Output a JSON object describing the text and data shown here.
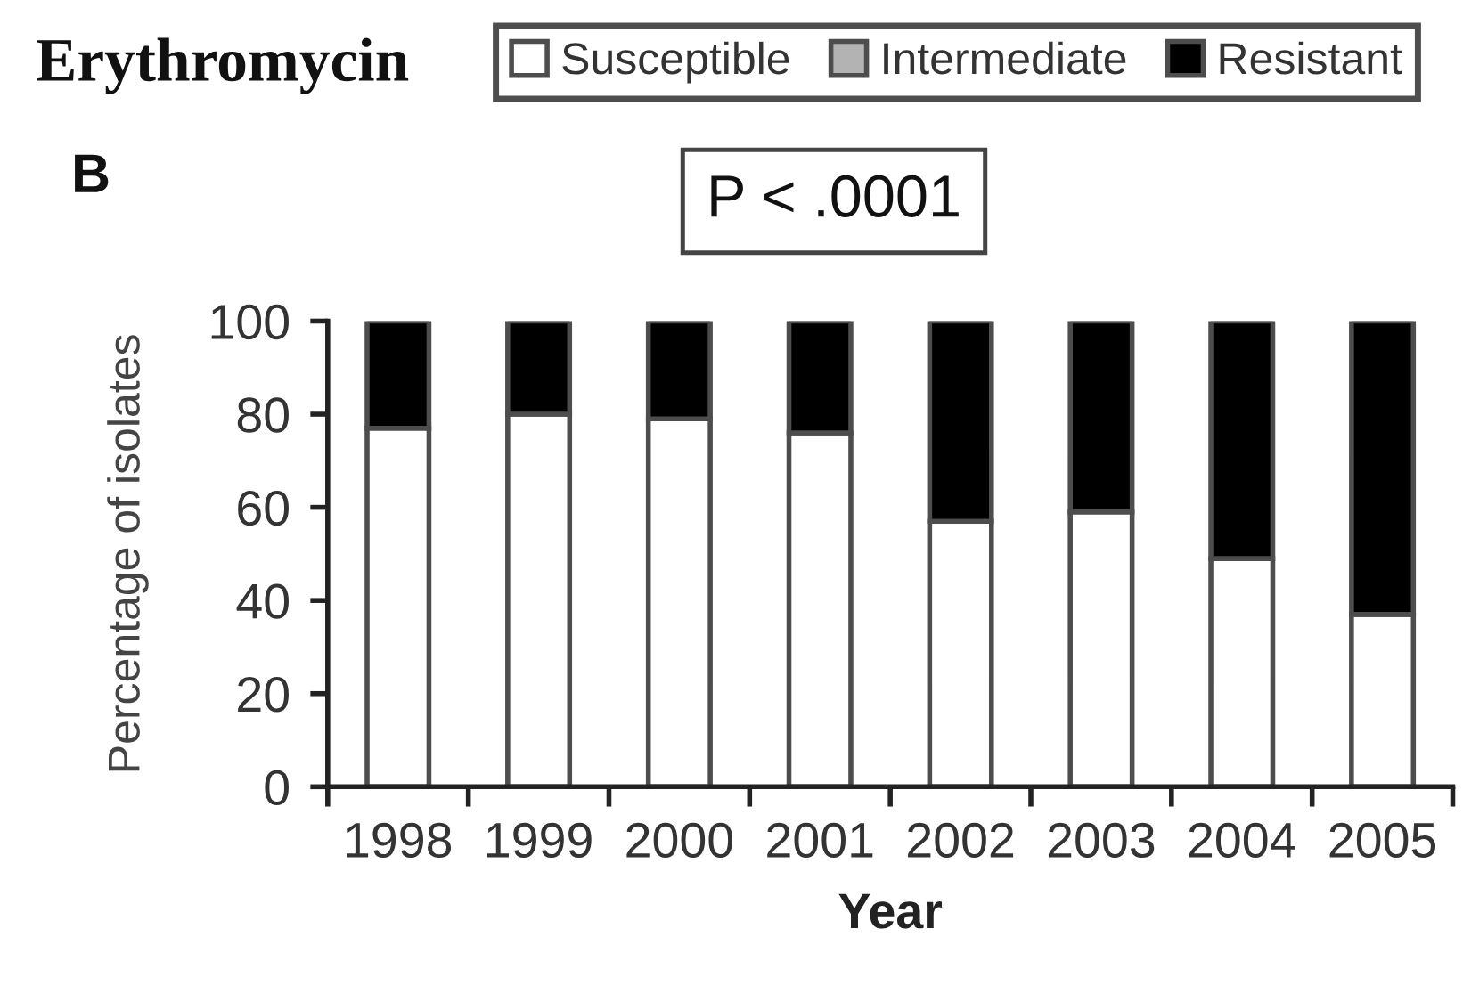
{
  "chart_data": {
    "type": "bar",
    "title": "Erythromycin",
    "xlabel": "Year",
    "ylabel": "Percentage of isolates",
    "annotations": [
      "B",
      "P < .0001"
    ],
    "categories": [
      "1998",
      "1999",
      "2000",
      "2001",
      "2002",
      "2003",
      "2004",
      "2005"
    ],
    "series": [
      {
        "name": "Susceptible",
        "color": "#ffffff",
        "values": [
          77,
          80,
          79,
          76,
          57,
          59,
          49,
          37
        ]
      },
      {
        "name": "Intermediate",
        "color": "#b3b3b3",
        "values": [
          null,
          null,
          null,
          null,
          null,
          null,
          null,
          null
        ]
      },
      {
        "name": "Resistant",
        "color": "#000000",
        "values": [
          23,
          20,
          21,
          24,
          43,
          41,
          51,
          63
        ]
      }
    ],
    "stacked": true,
    "ylim": [
      0,
      100
    ],
    "yticks": [
      0,
      20,
      40,
      60,
      80,
      100
    ],
    "legend": "top"
  }
}
